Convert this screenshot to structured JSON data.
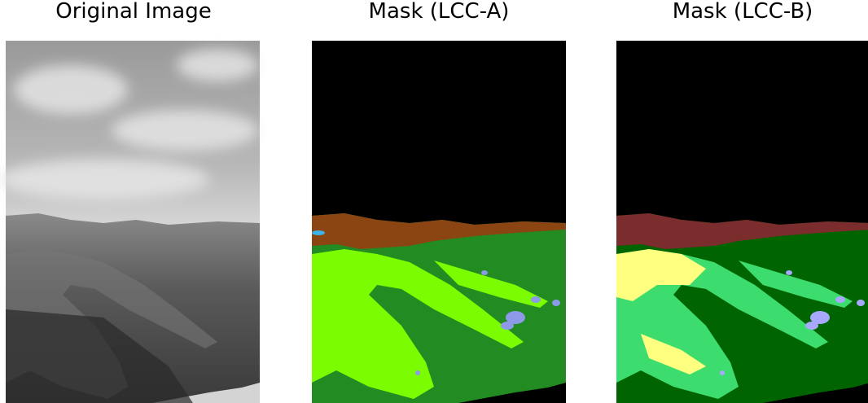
{
  "panels": [
    {
      "title": "Original Image"
    },
    {
      "title": "Mask (LCC-A)"
    },
    {
      "title": "Mask (LCC-B)"
    }
  ]
}
